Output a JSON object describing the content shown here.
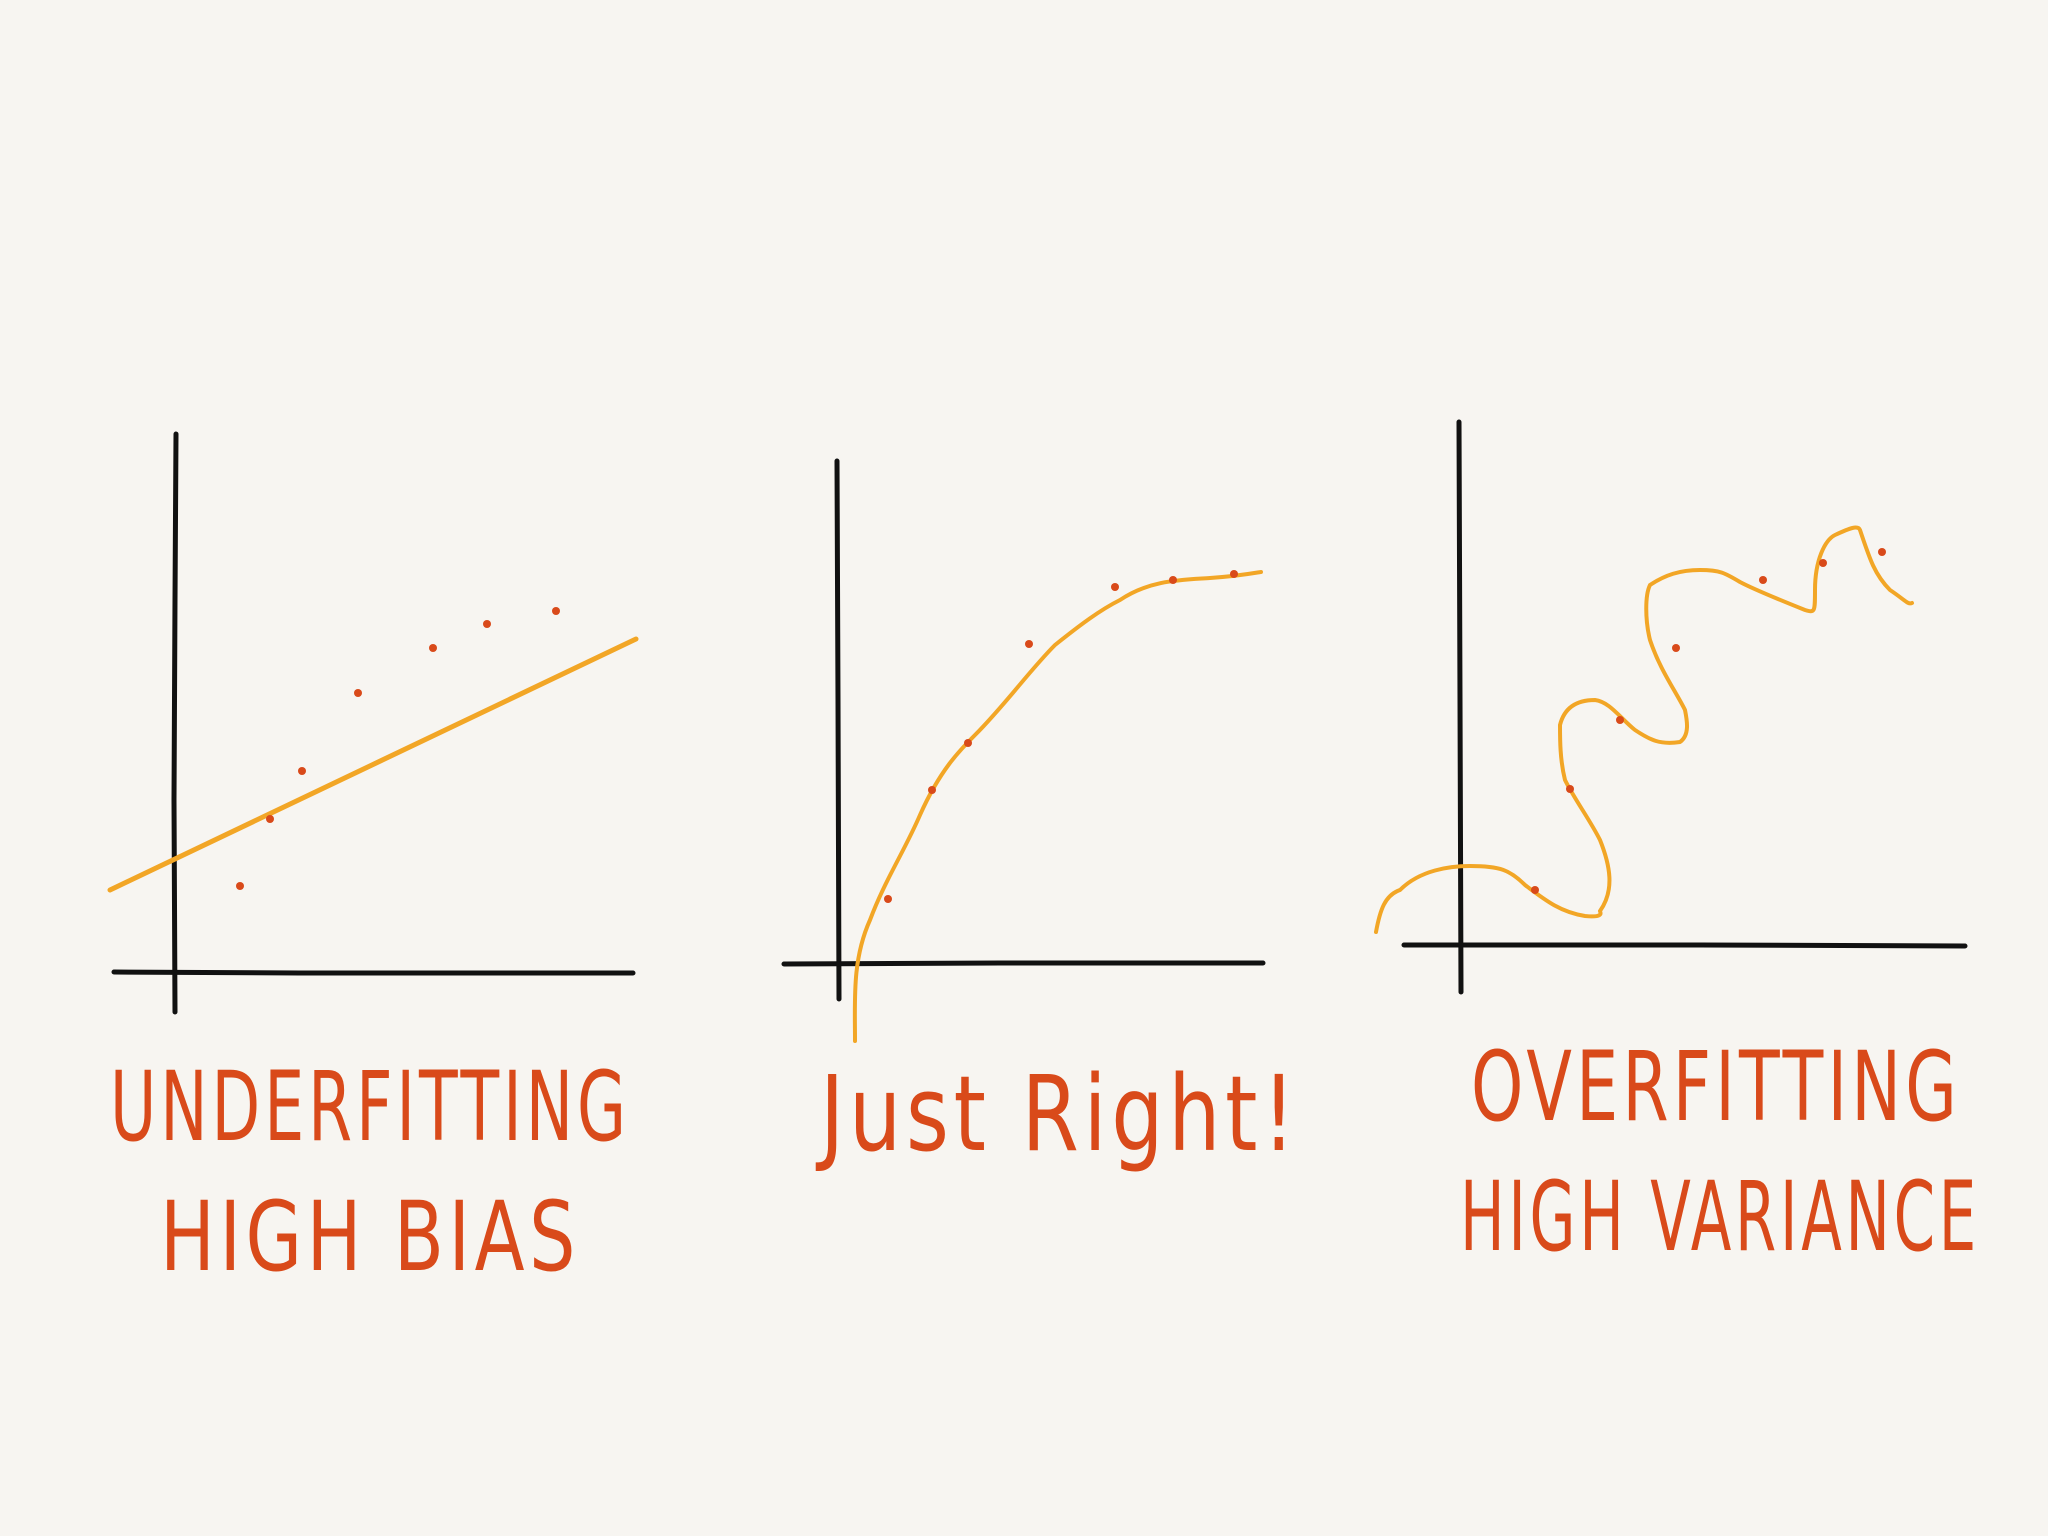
{
  "colors": {
    "background": "#f7f5f1",
    "axis": "#111111",
    "fit_curve": "#f2a626",
    "data_points": "#d94a1a",
    "handwriting": "#d94a1a"
  },
  "panels": [
    {
      "id": "underfitting",
      "caption_line1": "UNDERFITTING",
      "caption_line2": "HIGH BIAS",
      "fit": "linear"
    },
    {
      "id": "just-right",
      "caption_line1": "Just Right!",
      "caption_line2": "",
      "fit": "smooth"
    },
    {
      "id": "overfitting",
      "caption_line1": "OVERFITTING",
      "caption_line2": "HIGH VARIANCE",
      "fit": "wiggly"
    }
  ]
}
